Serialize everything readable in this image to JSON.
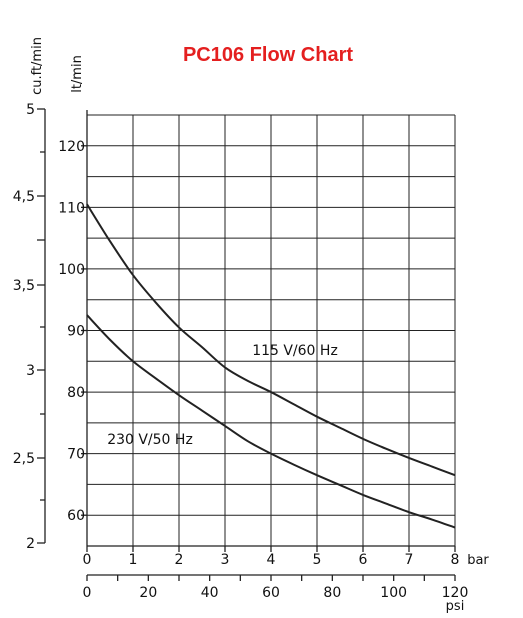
{
  "chart_data": {
    "type": "line",
    "title": "PC106 Flow Chart",
    "x_bar": {
      "unit": "bar",
      "range": [
        0,
        8
      ],
      "ticks": [
        "0",
        "1",
        "2",
        "3",
        "4",
        "5",
        "6",
        "7",
        "8"
      ]
    },
    "x_psi": {
      "unit": "psi",
      "range": [
        0,
        120
      ],
      "ticks": [
        "0",
        "20",
        "40",
        "60",
        "80",
        "100",
        "120"
      ],
      "minor_step": 10
    },
    "y_lt": {
      "unit": "lt/min",
      "range": [
        55,
        125
      ],
      "ticks": [
        "60",
        "70",
        "80",
        "90",
        "100",
        "110",
        "120"
      ]
    },
    "y_cuft": {
      "unit": "cu.ft/min",
      "ticks": [
        "2",
        "2,5",
        "3",
        "3,5",
        "4,5",
        "5"
      ],
      "minor_ticks": [
        "4"
      ]
    },
    "grid": true,
    "series": [
      {
        "name": "115 V/60 Hz",
        "x": [
          0,
          0.5,
          1,
          1.5,
          2,
          2.5,
          3,
          3.5,
          4,
          4.5,
          5,
          5.5,
          6,
          6.5,
          7,
          7.5,
          8
        ],
        "values": [
          110.5,
          104.5,
          99,
          94.5,
          90.5,
          87.3,
          84.0,
          81.8,
          80.0,
          78.0,
          76.0,
          74.2,
          72.4,
          70.8,
          69.3,
          67.9,
          66.5
        ]
      },
      {
        "name": "230 V/50 Hz",
        "x": [
          0,
          0.5,
          1,
          1.5,
          2,
          2.5,
          3,
          3.5,
          4,
          4.5,
          5,
          5.5,
          6,
          6.5,
          7,
          7.5,
          8
        ],
        "values": [
          92.5,
          88.5,
          85.0,
          82.2,
          79.5,
          77.0,
          74.5,
          72.0,
          70.0,
          68.2,
          66.5,
          64.9,
          63.3,
          61.9,
          60.5,
          59.3,
          58.0
        ]
      }
    ]
  }
}
